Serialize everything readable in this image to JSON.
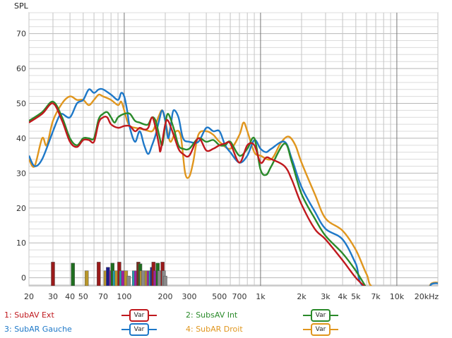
{
  "chart_data": {
    "type": "line",
    "title": "",
    "ylabel": "SPL",
    "xlabel": "",
    "xscale": "log",
    "xlim": [
      20,
      20000
    ],
    "ylim": [
      -2.3,
      76
    ],
    "grid": true,
    "y_ticks": [
      0,
      10,
      20,
      30,
      40,
      50,
      60,
      70
    ],
    "y_tick_labels": [
      "0",
      "10",
      "20",
      "30",
      "40",
      "50",
      "60",
      "70"
    ],
    "x_ticks": [
      20,
      30,
      40,
      50,
      70,
      100,
      200,
      300,
      500,
      700,
      1000,
      2000,
      3000,
      4000,
      5000,
      7000,
      10000,
      20000
    ],
    "x_tick_labels": [
      "20",
      "30",
      "40",
      "50",
      "70",
      "100",
      "200",
      "300",
      "500",
      "700",
      "1k",
      "2k",
      "3k",
      "4k",
      "5k",
      "7k",
      "10k",
      "20kHz"
    ],
    "legend_placement": "bottom",
    "series": [
      {
        "name": "1: SubAV Ext",
        "button": "Var",
        "color": "#c0191e",
        "points": [
          [
            20,
            44.5
          ],
          [
            25,
            47
          ],
          [
            30,
            50
          ],
          [
            35,
            45
          ],
          [
            40,
            39
          ],
          [
            45,
            37.5
          ],
          [
            50,
            39.5
          ],
          [
            55,
            39.5
          ],
          [
            60,
            39
          ],
          [
            65,
            44.5
          ],
          [
            70,
            46
          ],
          [
            75,
            46
          ],
          [
            80,
            44
          ],
          [
            90,
            43
          ],
          [
            100,
            43.5
          ],
          [
            110,
            43.5
          ],
          [
            120,
            42
          ],
          [
            130,
            43
          ],
          [
            140,
            42.5
          ],
          [
            150,
            43
          ],
          [
            160,
            46
          ],
          [
            170,
            43
          ],
          [
            180,
            38
          ],
          [
            185,
            36.5
          ],
          [
            200,
            44
          ],
          [
            210,
            45
          ],
          [
            230,
            41
          ],
          [
            250,
            37
          ],
          [
            270,
            35.5
          ],
          [
            300,
            35
          ],
          [
            350,
            40
          ],
          [
            400,
            36.5
          ],
          [
            450,
            37
          ],
          [
            500,
            38
          ],
          [
            550,
            38.5
          ],
          [
            600,
            38.5
          ],
          [
            700,
            33
          ],
          [
            800,
            38
          ],
          [
            900,
            38
          ],
          [
            1000,
            33
          ],
          [
            1100,
            34.5
          ],
          [
            1200,
            34
          ],
          [
            1500,
            32
          ],
          [
            1700,
            28
          ],
          [
            2000,
            21
          ],
          [
            2500,
            14
          ],
          [
            3000,
            11
          ],
          [
            4000,
            5
          ],
          [
            5000,
            0
          ],
          [
            6000,
            -3
          ]
        ]
      },
      {
        "name": "2: SubsAV Int",
        "button": "Var",
        "color": "#2a8a2a",
        "points": [
          [
            20,
            45
          ],
          [
            25,
            47.5
          ],
          [
            30,
            50.5
          ],
          [
            35,
            46
          ],
          [
            40,
            40
          ],
          [
            45,
            38
          ],
          [
            50,
            40
          ],
          [
            55,
            40
          ],
          [
            60,
            40
          ],
          [
            65,
            45.5
          ],
          [
            70,
            47
          ],
          [
            75,
            47.5
          ],
          [
            80,
            46
          ],
          [
            85,
            44.5
          ],
          [
            90,
            46
          ],
          [
            100,
            47
          ],
          [
            110,
            47
          ],
          [
            120,
            45
          ],
          [
            130,
            44.5
          ],
          [
            140,
            44
          ],
          [
            150,
            44
          ],
          [
            160,
            46
          ],
          [
            170,
            45
          ],
          [
            180,
            41
          ],
          [
            190,
            38
          ],
          [
            200,
            44
          ],
          [
            210,
            47
          ],
          [
            230,
            43
          ],
          [
            250,
            38
          ],
          [
            270,
            37
          ],
          [
            300,
            37
          ],
          [
            350,
            40
          ],
          [
            400,
            39
          ],
          [
            450,
            39.5
          ],
          [
            500,
            38
          ],
          [
            550,
            38
          ],
          [
            600,
            39
          ],
          [
            700,
            35
          ],
          [
            800,
            37
          ],
          [
            900,
            40
          ],
          [
            1000,
            31
          ],
          [
            1100,
            29.5
          ],
          [
            1200,
            32
          ],
          [
            1500,
            38.5
          ],
          [
            1700,
            33
          ],
          [
            2000,
            24
          ],
          [
            2500,
            17
          ],
          [
            3000,
            12
          ],
          [
            4000,
            7
          ],
          [
            5000,
            2
          ],
          [
            6000,
            -3
          ]
        ]
      },
      {
        "name": "3: SubAR Gauche",
        "button": "Var",
        "color": "#1e78c8",
        "points": [
          [
            20,
            35
          ],
          [
            22,
            32
          ],
          [
            25,
            34
          ],
          [
            30,
            42
          ],
          [
            33,
            46
          ],
          [
            35,
            47
          ],
          [
            40,
            46
          ],
          [
            45,
            50
          ],
          [
            50,
            51
          ],
          [
            55,
            54
          ],
          [
            60,
            53
          ],
          [
            65,
            54
          ],
          [
            70,
            54
          ],
          [
            80,
            52.5
          ],
          [
            90,
            51
          ],
          [
            95,
            53
          ],
          [
            100,
            52
          ],
          [
            105,
            48
          ],
          [
            110,
            43
          ],
          [
            120,
            39
          ],
          [
            130,
            42
          ],
          [
            140,
            38
          ],
          [
            150,
            35.5
          ],
          [
            160,
            38
          ],
          [
            170,
            41
          ],
          [
            180,
            45
          ],
          [
            190,
            48
          ],
          [
            200,
            45
          ],
          [
            210,
            40
          ],
          [
            220,
            44
          ],
          [
            230,
            48
          ],
          [
            250,
            46
          ],
          [
            270,
            40
          ],
          [
            300,
            39
          ],
          [
            350,
            39
          ],
          [
            400,
            43
          ],
          [
            450,
            42
          ],
          [
            500,
            42
          ],
          [
            550,
            38
          ],
          [
            600,
            36
          ],
          [
            700,
            33
          ],
          [
            800,
            35
          ],
          [
            900,
            39.5
          ],
          [
            1000,
            37
          ],
          [
            1100,
            36
          ],
          [
            1200,
            37
          ],
          [
            1500,
            39
          ],
          [
            1700,
            34
          ],
          [
            2000,
            26
          ],
          [
            2500,
            19
          ],
          [
            3000,
            14
          ],
          [
            4000,
            11
          ],
          [
            5000,
            4
          ],
          [
            6000,
            -3
          ],
          [
            15000,
            -4
          ],
          [
            18000,
            -1.8
          ],
          [
            20000,
            -1.6
          ]
        ]
      },
      {
        "name": "4: SubAR Droit",
        "button": "Var",
        "color": "#e0961e",
        "points": [
          [
            20,
            34
          ],
          [
            22,
            32
          ],
          [
            25,
            40
          ],
          [
            27,
            38
          ],
          [
            30,
            45
          ],
          [
            35,
            50
          ],
          [
            40,
            52
          ],
          [
            45,
            51
          ],
          [
            50,
            51
          ],
          [
            55,
            49.5
          ],
          [
            60,
            51
          ],
          [
            65,
            52.5
          ],
          [
            70,
            52
          ],
          [
            80,
            51
          ],
          [
            90,
            49.5
          ],
          [
            95,
            50.5
          ],
          [
            100,
            48
          ],
          [
            105,
            45
          ],
          [
            110,
            43.5
          ],
          [
            120,
            43
          ],
          [
            140,
            42.5
          ],
          [
            160,
            42
          ],
          [
            170,
            44
          ],
          [
            180,
            46.5
          ],
          [
            190,
            48
          ],
          [
            200,
            45
          ],
          [
            210,
            41
          ],
          [
            220,
            39
          ],
          [
            240,
            42
          ],
          [
            260,
            40.5
          ],
          [
            280,
            30
          ],
          [
            300,
            29
          ],
          [
            320,
            33
          ],
          [
            350,
            41
          ],
          [
            400,
            42
          ],
          [
            450,
            41
          ],
          [
            500,
            39
          ],
          [
            600,
            37
          ],
          [
            700,
            41
          ],
          [
            750,
            44.5
          ],
          [
            800,
            42
          ],
          [
            900,
            36
          ],
          [
            1000,
            35
          ],
          [
            1200,
            34
          ],
          [
            1400,
            38.5
          ],
          [
            1600,
            40.5
          ],
          [
            1800,
            38
          ],
          [
            2000,
            33
          ],
          [
            2500,
            24
          ],
          [
            3000,
            17
          ],
          [
            4000,
            13.5
          ],
          [
            5000,
            8
          ],
          [
            6000,
            1
          ],
          [
            7000,
            -3
          ],
          [
            15000,
            -4
          ],
          [
            18000,
            -1.6
          ],
          [
            20000,
            -1.4
          ]
        ]
      }
    ],
    "filter_markers": [
      {
        "freq": 30,
        "level": 4.5,
        "color": "#9a1a1a"
      },
      {
        "freq": 42,
        "level": 4.2,
        "color": "#1f6e1f"
      },
      {
        "freq": 53,
        "level": 2,
        "color": "#b8962a"
      },
      {
        "freq": 65,
        "level": 4.5,
        "color": "#9a1a1a"
      },
      {
        "freq": 73,
        "level": 2,
        "color": "#b8962a"
      },
      {
        "freq": 76,
        "level": 3,
        "color": "#1a1a8a"
      },
      {
        "freq": 80,
        "level": 2,
        "color": "#a020a0"
      },
      {
        "freq": 82,
        "level": 4.2,
        "color": "#1f6e1f"
      },
      {
        "freq": 85,
        "level": 2,
        "color": "#20a0b0"
      },
      {
        "freq": 88,
        "level": 2,
        "color": "#b8962a"
      },
      {
        "freq": 92,
        "level": 4.5,
        "color": "#9a1a1a"
      },
      {
        "freq": 95,
        "level": 2,
        "color": "#20a0b0"
      },
      {
        "freq": 98,
        "level": 2,
        "color": "#a020a0"
      },
      {
        "freq": 103,
        "level": 2,
        "color": "#b8962a"
      },
      {
        "freq": 108,
        "level": 0.5,
        "color": "#8a8a8a"
      },
      {
        "freq": 118,
        "level": 2,
        "color": "#20a0b0"
      },
      {
        "freq": 122,
        "level": 2,
        "color": "#a020a0"
      },
      {
        "freq": 127,
        "level": 4.5,
        "color": "#7a2a1a"
      },
      {
        "freq": 131,
        "level": 4,
        "color": "#1f6e1f"
      },
      {
        "freq": 134,
        "level": 2,
        "color": "#b8962a"
      },
      {
        "freq": 138,
        "level": 2,
        "color": "#8a8a8a"
      },
      {
        "freq": 146,
        "level": 2,
        "color": "#b8962a"
      },
      {
        "freq": 151,
        "level": 2,
        "color": "#a020a0"
      },
      {
        "freq": 156,
        "level": 2,
        "color": "#20a0b0"
      },
      {
        "freq": 160,
        "level": 3,
        "color": "#1a1a8a"
      },
      {
        "freq": 164,
        "level": 4.5,
        "color": "#9a1a1a"
      },
      {
        "freq": 169,
        "level": 2,
        "color": "#a020a0"
      },
      {
        "freq": 176,
        "level": 4.2,
        "color": "#1f6e1f"
      },
      {
        "freq": 181,
        "level": 2,
        "color": "#8a8a8a"
      },
      {
        "freq": 191,
        "level": 4.5,
        "color": "#9a1a1a"
      },
      {
        "freq": 195,
        "level": 2,
        "color": "#8a8a8a"
      },
      {
        "freq": 200,
        "level": 0.5,
        "color": "#8a8a8a"
      }
    ]
  }
}
